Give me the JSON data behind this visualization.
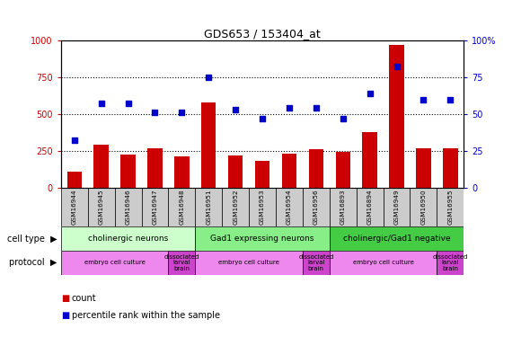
{
  "title": "GDS653 / 153404_at",
  "samples": [
    "GSM16944",
    "GSM16945",
    "GSM16946",
    "GSM16947",
    "GSM16948",
    "GSM16951",
    "GSM16952",
    "GSM16953",
    "GSM16954",
    "GSM16956",
    "GSM16893",
    "GSM16894",
    "GSM16949",
    "GSM16950",
    "GSM16955"
  ],
  "counts": [
    110,
    295,
    225,
    265,
    215,
    580,
    220,
    185,
    230,
    260,
    245,
    375,
    970,
    270,
    265
  ],
  "percentiles": [
    32,
    57,
    57,
    51,
    51,
    75,
    53,
    47,
    54,
    54,
    47,
    64,
    82,
    60,
    60
  ],
  "bar_color": "#cc0000",
  "dot_color": "#0000cc",
  "ylim_left": [
    0,
    1000
  ],
  "ylim_right": [
    0,
    100
  ],
  "yticks_left": [
    0,
    250,
    500,
    750,
    1000
  ],
  "yticks_right": [
    0,
    25,
    50,
    75,
    100
  ],
  "ytick_labels_right": [
    "0",
    "25",
    "50",
    "75",
    "100%"
  ],
  "cell_type_groups": [
    {
      "label": "cholinergic neurons",
      "start": 0,
      "end": 5,
      "color": "#ccffcc"
    },
    {
      "label": "Gad1 expressing neurons",
      "start": 5,
      "end": 10,
      "color": "#88ee88"
    },
    {
      "label": "cholinergic/Gad1 negative",
      "start": 10,
      "end": 15,
      "color": "#44cc44"
    }
  ],
  "protocol_groups": [
    {
      "label": "embryo cell culture",
      "start": 0,
      "end": 4,
      "color": "#ee88ee"
    },
    {
      "label": "dissociated\nlarval\nbrain",
      "start": 4,
      "end": 5,
      "color": "#cc44cc"
    },
    {
      "label": "embryo cell culture",
      "start": 5,
      "end": 9,
      "color": "#ee88ee"
    },
    {
      "label": "dissociated\nlarval\nbrain",
      "start": 9,
      "end": 10,
      "color": "#cc44cc"
    },
    {
      "label": "embryo cell culture",
      "start": 10,
      "end": 14,
      "color": "#ee88ee"
    },
    {
      "label": "dissociated\nlarval\nbrain",
      "start": 14,
      "end": 15,
      "color": "#cc44cc"
    }
  ],
  "left_axis_color": "#cc0000",
  "right_axis_color": "#0000cc",
  "gsm_bg_color": "#cccccc",
  "fig_width": 5.9,
  "fig_height": 3.75,
  "dpi": 100
}
